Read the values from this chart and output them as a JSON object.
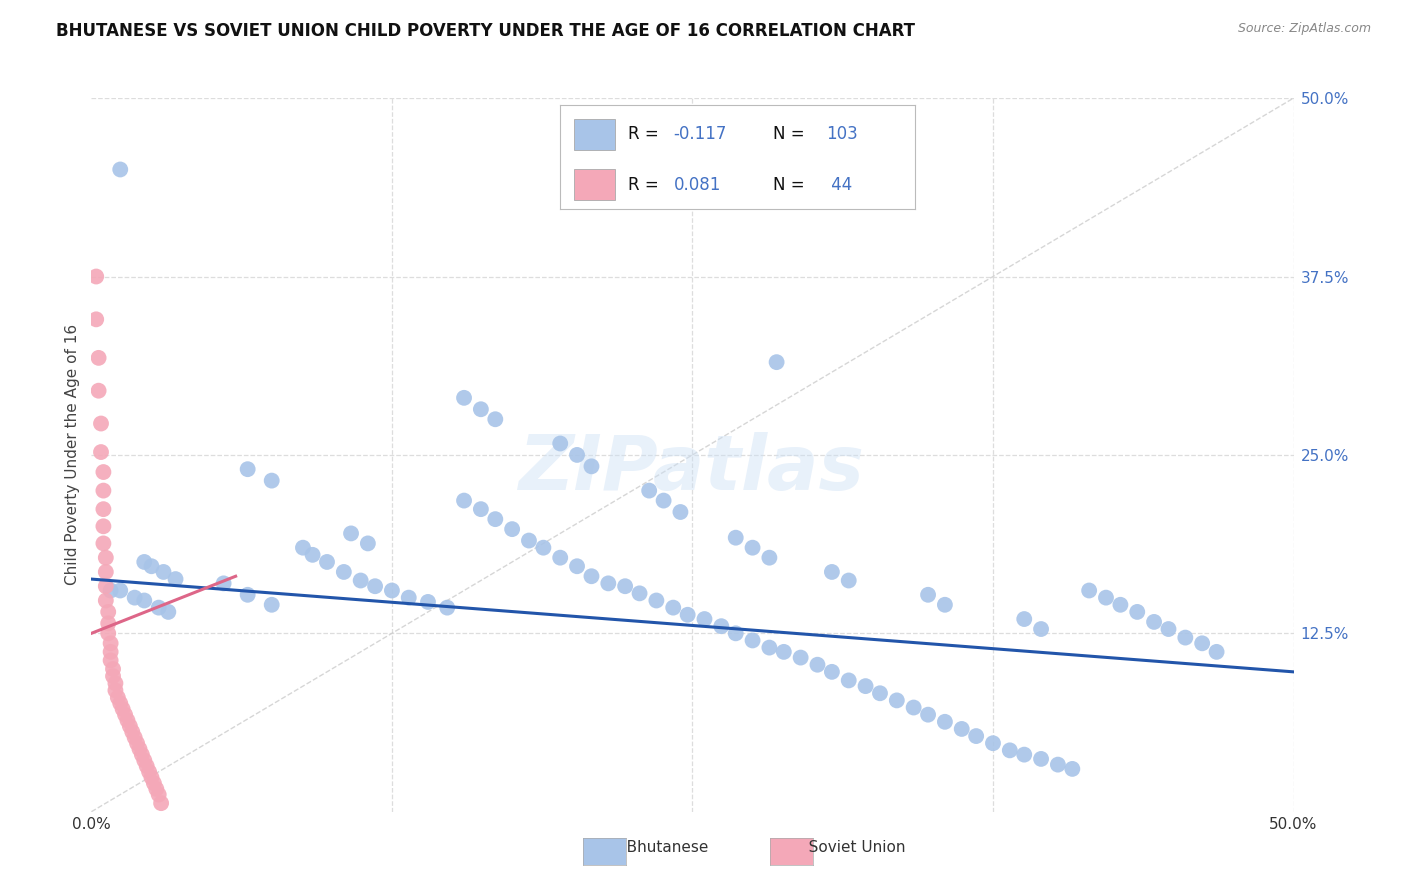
{
  "title": "BHUTANESE VS SOVIET UNION CHILD POVERTY UNDER THE AGE OF 16 CORRELATION CHART",
  "source": "Source: ZipAtlas.com",
  "ylabel": "Child Poverty Under the Age of 16",
  "xlim": [
    0.0,
    0.5
  ],
  "ylim": [
    0.0,
    0.5
  ],
  "grid_color": "#dddddd",
  "background_color": "#ffffff",
  "watermark": "ZIPatlas",
  "blue_scatter_color": "#a8c4e8",
  "pink_scatter_color": "#f4a8b8",
  "blue_line_color": "#2255aa",
  "pink_line_color": "#dd6688",
  "diag_line_color": "#cccccc",
  "right_tick_color": "#4472c4",
  "legend_box_color": "#e8e8e8",
  "blue_trendline_x": [
    0.0,
    0.5
  ],
  "blue_trendline_y": [
    0.163,
    0.098
  ],
  "pink_trendline_x": [
    0.0,
    0.06
  ],
  "pink_trendline_y": [
    0.125,
    0.165
  ],
  "blue_x": [
    0.008,
    0.012,
    0.018,
    0.022,
    0.028,
    0.032,
    0.022,
    0.025,
    0.03,
    0.035,
    0.055,
    0.065,
    0.075,
    0.088,
    0.092,
    0.098,
    0.105,
    0.112,
    0.118,
    0.125,
    0.132,
    0.14,
    0.148,
    0.155,
    0.162,
    0.168,
    0.175,
    0.182,
    0.188,
    0.195,
    0.202,
    0.208,
    0.215,
    0.222,
    0.228,
    0.235,
    0.242,
    0.248,
    0.255,
    0.262,
    0.268,
    0.275,
    0.282,
    0.288,
    0.295,
    0.302,
    0.308,
    0.315,
    0.322,
    0.328,
    0.335,
    0.342,
    0.348,
    0.355,
    0.362,
    0.368,
    0.375,
    0.382,
    0.388,
    0.395,
    0.402,
    0.408,
    0.415,
    0.422,
    0.428,
    0.435,
    0.442,
    0.448,
    0.455,
    0.462,
    0.468,
    0.065,
    0.075,
    0.108,
    0.115,
    0.155,
    0.162,
    0.168,
    0.195,
    0.202,
    0.208,
    0.232,
    0.238,
    0.245,
    0.268,
    0.275,
    0.282,
    0.308,
    0.315,
    0.348,
    0.355,
    0.388,
    0.395,
    0.012,
    0.285
  ],
  "blue_y": [
    0.155,
    0.155,
    0.15,
    0.148,
    0.143,
    0.14,
    0.175,
    0.172,
    0.168,
    0.163,
    0.16,
    0.152,
    0.145,
    0.185,
    0.18,
    0.175,
    0.168,
    0.162,
    0.158,
    0.155,
    0.15,
    0.147,
    0.143,
    0.218,
    0.212,
    0.205,
    0.198,
    0.19,
    0.185,
    0.178,
    0.172,
    0.165,
    0.16,
    0.158,
    0.153,
    0.148,
    0.143,
    0.138,
    0.135,
    0.13,
    0.125,
    0.12,
    0.115,
    0.112,
    0.108,
    0.103,
    0.098,
    0.092,
    0.088,
    0.083,
    0.078,
    0.073,
    0.068,
    0.063,
    0.058,
    0.053,
    0.048,
    0.043,
    0.04,
    0.037,
    0.033,
    0.03,
    0.155,
    0.15,
    0.145,
    0.14,
    0.133,
    0.128,
    0.122,
    0.118,
    0.112,
    0.24,
    0.232,
    0.195,
    0.188,
    0.29,
    0.282,
    0.275,
    0.258,
    0.25,
    0.242,
    0.225,
    0.218,
    0.21,
    0.192,
    0.185,
    0.178,
    0.168,
    0.162,
    0.152,
    0.145,
    0.135,
    0.128,
    0.45,
    0.315
  ],
  "pink_x": [
    0.002,
    0.002,
    0.003,
    0.003,
    0.004,
    0.004,
    0.005,
    0.005,
    0.005,
    0.005,
    0.005,
    0.006,
    0.006,
    0.006,
    0.006,
    0.007,
    0.007,
    0.007,
    0.008,
    0.008,
    0.008,
    0.009,
    0.009,
    0.01,
    0.01,
    0.011,
    0.012,
    0.013,
    0.014,
    0.015,
    0.016,
    0.017,
    0.018,
    0.019,
    0.02,
    0.021,
    0.022,
    0.023,
    0.024,
    0.025,
    0.026,
    0.027,
    0.028,
    0.029
  ],
  "pink_y": [
    0.375,
    0.345,
    0.318,
    0.295,
    0.272,
    0.252,
    0.238,
    0.225,
    0.212,
    0.2,
    0.188,
    0.178,
    0.168,
    0.158,
    0.148,
    0.14,
    0.132,
    0.125,
    0.118,
    0.112,
    0.106,
    0.1,
    0.095,
    0.09,
    0.085,
    0.08,
    0.076,
    0.072,
    0.068,
    0.064,
    0.06,
    0.056,
    0.052,
    0.048,
    0.044,
    0.04,
    0.036,
    0.032,
    0.028,
    0.024,
    0.02,
    0.016,
    0.012,
    0.006
  ]
}
